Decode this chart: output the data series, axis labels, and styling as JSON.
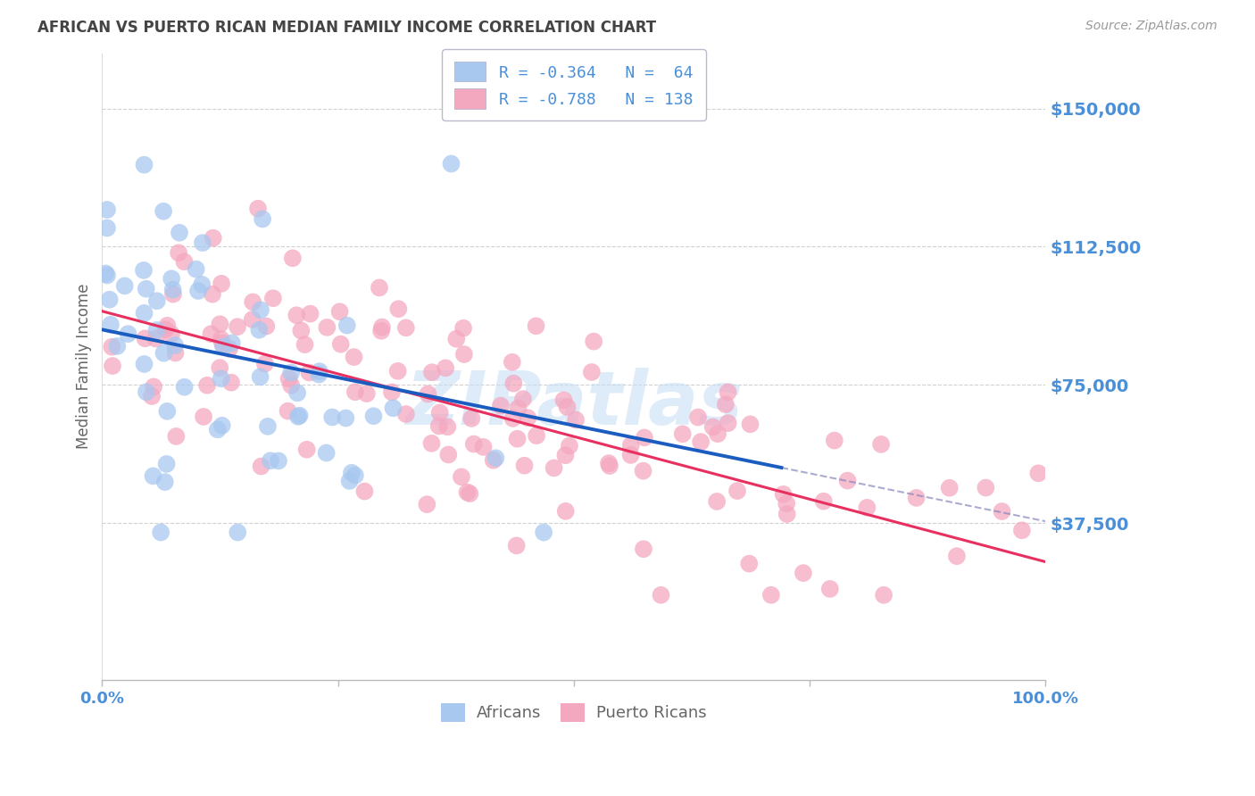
{
  "title": "AFRICAN VS PUERTO RICAN MEDIAN FAMILY INCOME CORRELATION CHART",
  "source": "Source: ZipAtlas.com",
  "ylabel": "Median Family Income",
  "yticks": [
    0,
    37500,
    75000,
    112500,
    150000
  ],
  "ytick_labels": [
    "",
    "$37,500",
    "$75,000",
    "$112,500",
    "$150,000"
  ],
  "ylim": [
    -5000,
    165000
  ],
  "xlim": [
    0.0,
    1.0
  ],
  "africans_color": "#a8c8f0",
  "puertoricans_color": "#f4a8c0",
  "africans_line_color": "#1a5cbf",
  "puertoricans_line_color": "#e83060",
  "africans_trendline_intercept": 90000,
  "africans_trendline_slope": -52000,
  "puertoricans_trendline_intercept": 95000,
  "puertoricans_trendline_slope": -68000,
  "watermark_text": "ZIPatlas",
  "watermark_color": "#c8dff5",
  "background_color": "#ffffff",
  "grid_color": "#cccccc",
  "title_color": "#444444",
  "axis_label_color": "#4a90d9",
  "ytick_color": "#4a90d9",
  "legend_text_color": "#4a90d9",
  "legend_n_color": "#333333",
  "bottom_legend_color": "#666666"
}
